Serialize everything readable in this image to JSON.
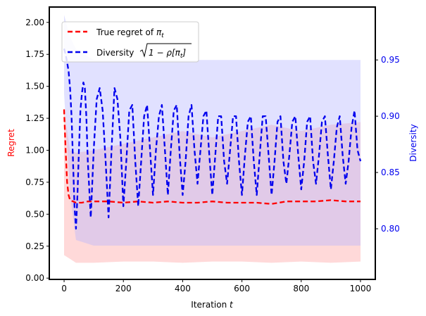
{
  "chart_data": {
    "type": "line",
    "title": "",
    "xlabel": "Iteration t",
    "xlabel_main": "Iteration ",
    "xlabel_var": "t",
    "ylabel_left": "Regret",
    "ylabel_right": "Diversity",
    "xlim": [
      -50,
      1050
    ],
    "ylim_left": [
      -0.01,
      2.12
    ],
    "ylim_right": [
      0.755,
      0.997
    ],
    "x_ticks": [
      0,
      200,
      400,
      600,
      800,
      1000
    ],
    "y_left_ticks": [
      0.0,
      0.25,
      0.5,
      0.75,
      1.0,
      1.25,
      1.5,
      1.75,
      2.0
    ],
    "y_left_tick_labels": [
      "0.00",
      "0.25",
      "0.50",
      "0.75",
      "1.00",
      "1.25",
      "1.50",
      "1.75",
      "2.00"
    ],
    "y_right_ticks": [
      0.8,
      0.85,
      0.9,
      0.95
    ],
    "y_right_tick_labels": [
      "0.80",
      "0.85",
      "0.90",
      "0.95"
    ],
    "legend_position": "top-left",
    "colors": {
      "regret": "#ff0000",
      "regret_band": "#ffb3b3",
      "diversity": "#0000ee",
      "diversity_band": "#b3b3ff"
    },
    "series": [
      {
        "name": "True regret of π_t",
        "legend_main": "True regret of ",
        "legend_math": "π",
        "legend_sub": "t",
        "axis": "left",
        "style": "dashed",
        "x": [
          0,
          5,
          10,
          15,
          20,
          30,
          40,
          60,
          80,
          100,
          150,
          200,
          250,
          300,
          350,
          400,
          450,
          500,
          550,
          600,
          650,
          700,
          750,
          800,
          850,
          900,
          950,
          1000
        ],
        "values": [
          1.32,
          1.0,
          0.75,
          0.65,
          0.61,
          0.6,
          0.59,
          0.59,
          0.6,
          0.6,
          0.6,
          0.59,
          0.6,
          0.59,
          0.6,
          0.59,
          0.59,
          0.6,
          0.59,
          0.59,
          0.59,
          0.58,
          0.6,
          0.6,
          0.6,
          0.61,
          0.6,
          0.6
        ],
        "band": {
          "x": [
            0,
            20,
            40,
            100,
            200,
            300,
            400,
            500,
            600,
            700,
            800,
            900,
            1000
          ],
          "lower": [
            0.18,
            0.15,
            0.12,
            0.12,
            0.13,
            0.13,
            0.12,
            0.13,
            0.13,
            0.12,
            0.13,
            0.12,
            0.13
          ],
          "upper": [
            1.32,
            1.0,
            0.98,
            1.0,
            1.05,
            1.1,
            1.15,
            1.1,
            1.15,
            1.2,
            1.15,
            1.2,
            1.22
          ]
        }
      },
      {
        "name": "Diversity √(1−ρ[π_t])",
        "legend_main": "Diversity ",
        "legend_math_pre": "1 − ρ[π",
        "legend_sub": "t",
        "legend_math_post": "]",
        "axis": "right",
        "style": "dashed",
        "x": [
          0,
          5,
          10,
          15,
          20,
          25,
          30,
          35,
          40,
          45,
          50,
          55,
          60,
          65,
          70,
          75,
          80,
          90,
          100,
          110,
          120,
          130,
          140,
          150,
          160,
          170,
          180,
          190,
          200,
          210,
          220,
          230,
          240,
          250,
          260,
          270,
          280,
          290,
          300,
          310,
          320,
          330,
          340,
          350,
          360,
          370,
          380,
          390,
          400,
          410,
          420,
          430,
          440,
          450,
          460,
          470,
          480,
          490,
          500,
          510,
          520,
          530,
          540,
          550,
          560,
          570,
          580,
          590,
          600,
          610,
          620,
          630,
          640,
          650,
          660,
          670,
          680,
          690,
          700,
          710,
          720,
          730,
          740,
          750,
          760,
          770,
          780,
          790,
          800,
          810,
          820,
          830,
          840,
          850,
          860,
          870,
          880,
          890,
          900,
          910,
          920,
          930,
          940,
          950,
          960,
          970,
          980,
          990,
          1000
        ],
        "values": [
          0.96,
          0.955,
          0.948,
          0.94,
          0.925,
          0.9,
          0.86,
          0.82,
          0.8,
          0.83,
          0.87,
          0.905,
          0.92,
          0.93,
          0.925,
          0.9,
          0.86,
          0.81,
          0.87,
          0.915,
          0.925,
          0.905,
          0.86,
          0.81,
          0.87,
          0.925,
          0.915,
          0.88,
          0.82,
          0.86,
          0.905,
          0.91,
          0.86,
          0.82,
          0.86,
          0.9,
          0.91,
          0.87,
          0.83,
          0.87,
          0.9,
          0.91,
          0.87,
          0.83,
          0.87,
          0.905,
          0.91,
          0.865,
          0.83,
          0.86,
          0.9,
          0.91,
          0.87,
          0.84,
          0.87,
          0.9,
          0.905,
          0.865,
          0.83,
          0.865,
          0.9,
          0.9,
          0.86,
          0.84,
          0.87,
          0.9,
          0.9,
          0.86,
          0.83,
          0.865,
          0.895,
          0.9,
          0.86,
          0.83,
          0.865,
          0.9,
          0.9,
          0.865,
          0.83,
          0.86,
          0.895,
          0.9,
          0.86,
          0.84,
          0.865,
          0.895,
          0.9,
          0.865,
          0.835,
          0.86,
          0.895,
          0.9,
          0.86,
          0.84,
          0.865,
          0.895,
          0.9,
          0.865,
          0.835,
          0.86,
          0.89,
          0.9,
          0.865,
          0.84,
          0.86,
          0.89,
          0.905,
          0.87,
          0.86
        ],
        "band": {
          "x": [
            0,
            20,
            40,
            100,
            200,
            300,
            400,
            500,
            600,
            700,
            800,
            900,
            1000
          ],
          "lower": [
            0.92,
            0.83,
            0.79,
            0.785,
            0.785,
            0.785,
            0.785,
            0.785,
            0.785,
            0.785,
            0.785,
            0.785,
            0.785
          ],
          "upper": [
            0.99,
            0.97,
            0.96,
            0.95,
            0.95,
            0.95,
            0.95,
            0.95,
            0.95,
            0.95,
            0.95,
            0.95,
            0.95
          ]
        }
      }
    ]
  }
}
